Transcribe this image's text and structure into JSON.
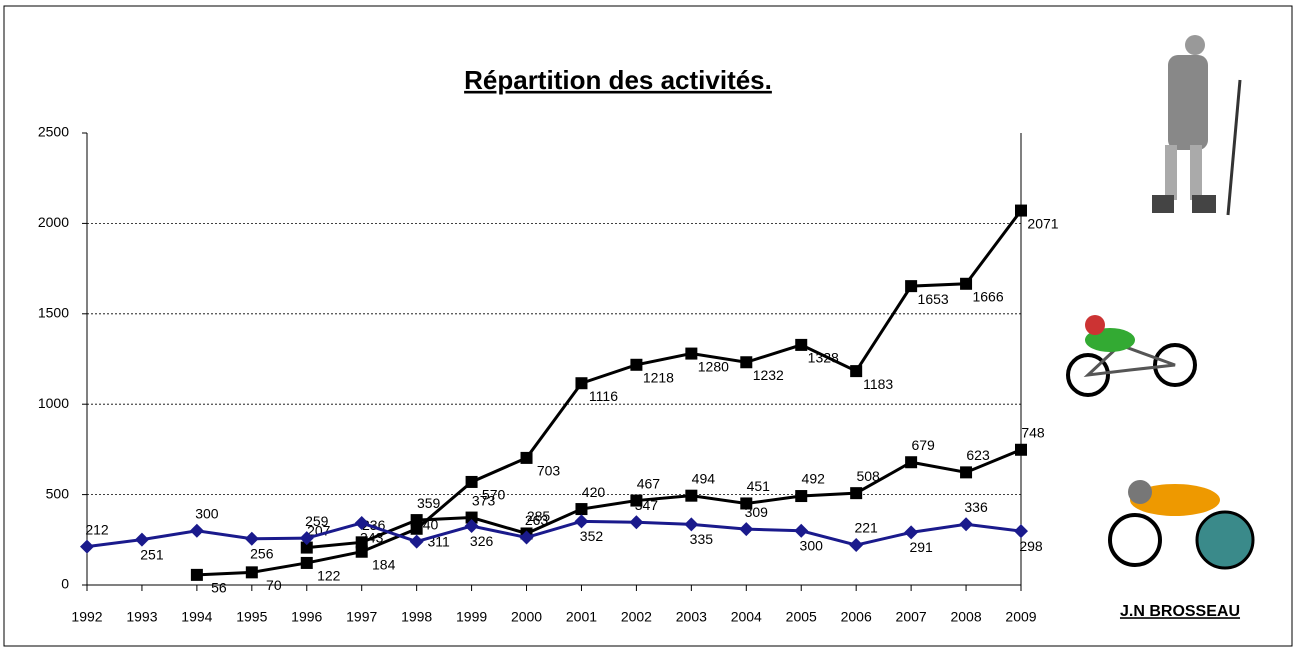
{
  "chart_data": {
    "type": "line",
    "title": "Répartition des activités.",
    "author": "J.N BROSSEAU",
    "categories": [
      "1992",
      "1993",
      "1994",
      "1995",
      "1996",
      "1997",
      "1998",
      "1999",
      "2000",
      "2001",
      "2002",
      "2003",
      "2004",
      "2005",
      "2006",
      "2007",
      "2008",
      "2009"
    ],
    "series": [
      {
        "color": "#000000",
        "marker": "square",
        "values": [
          null,
          null,
          56,
          70,
          122,
          184,
          311,
          570,
          703,
          1116,
          1218,
          1280,
          1232,
          1328,
          1183,
          1653,
          1666,
          2071
        ]
      },
      {
        "color": "#000000",
        "marker": "square",
        "values": [
          null,
          null,
          null,
          null,
          207,
          236,
          359,
          373,
          285,
          420,
          467,
          494,
          451,
          492,
          508,
          679,
          623,
          748
        ]
      },
      {
        "color": "#1a1a8c",
        "marker": "diamond",
        "values": [
          212,
          251,
          300,
          256,
          259,
          343,
          240,
          326,
          263,
          352,
          347,
          335,
          309,
          300,
          221,
          291,
          336,
          298
        ]
      }
    ],
    "ylim": [
      0,
      2500
    ],
    "yticks": [
      0,
      500,
      1000,
      1500,
      2000,
      2500
    ],
    "grid": true
  }
}
